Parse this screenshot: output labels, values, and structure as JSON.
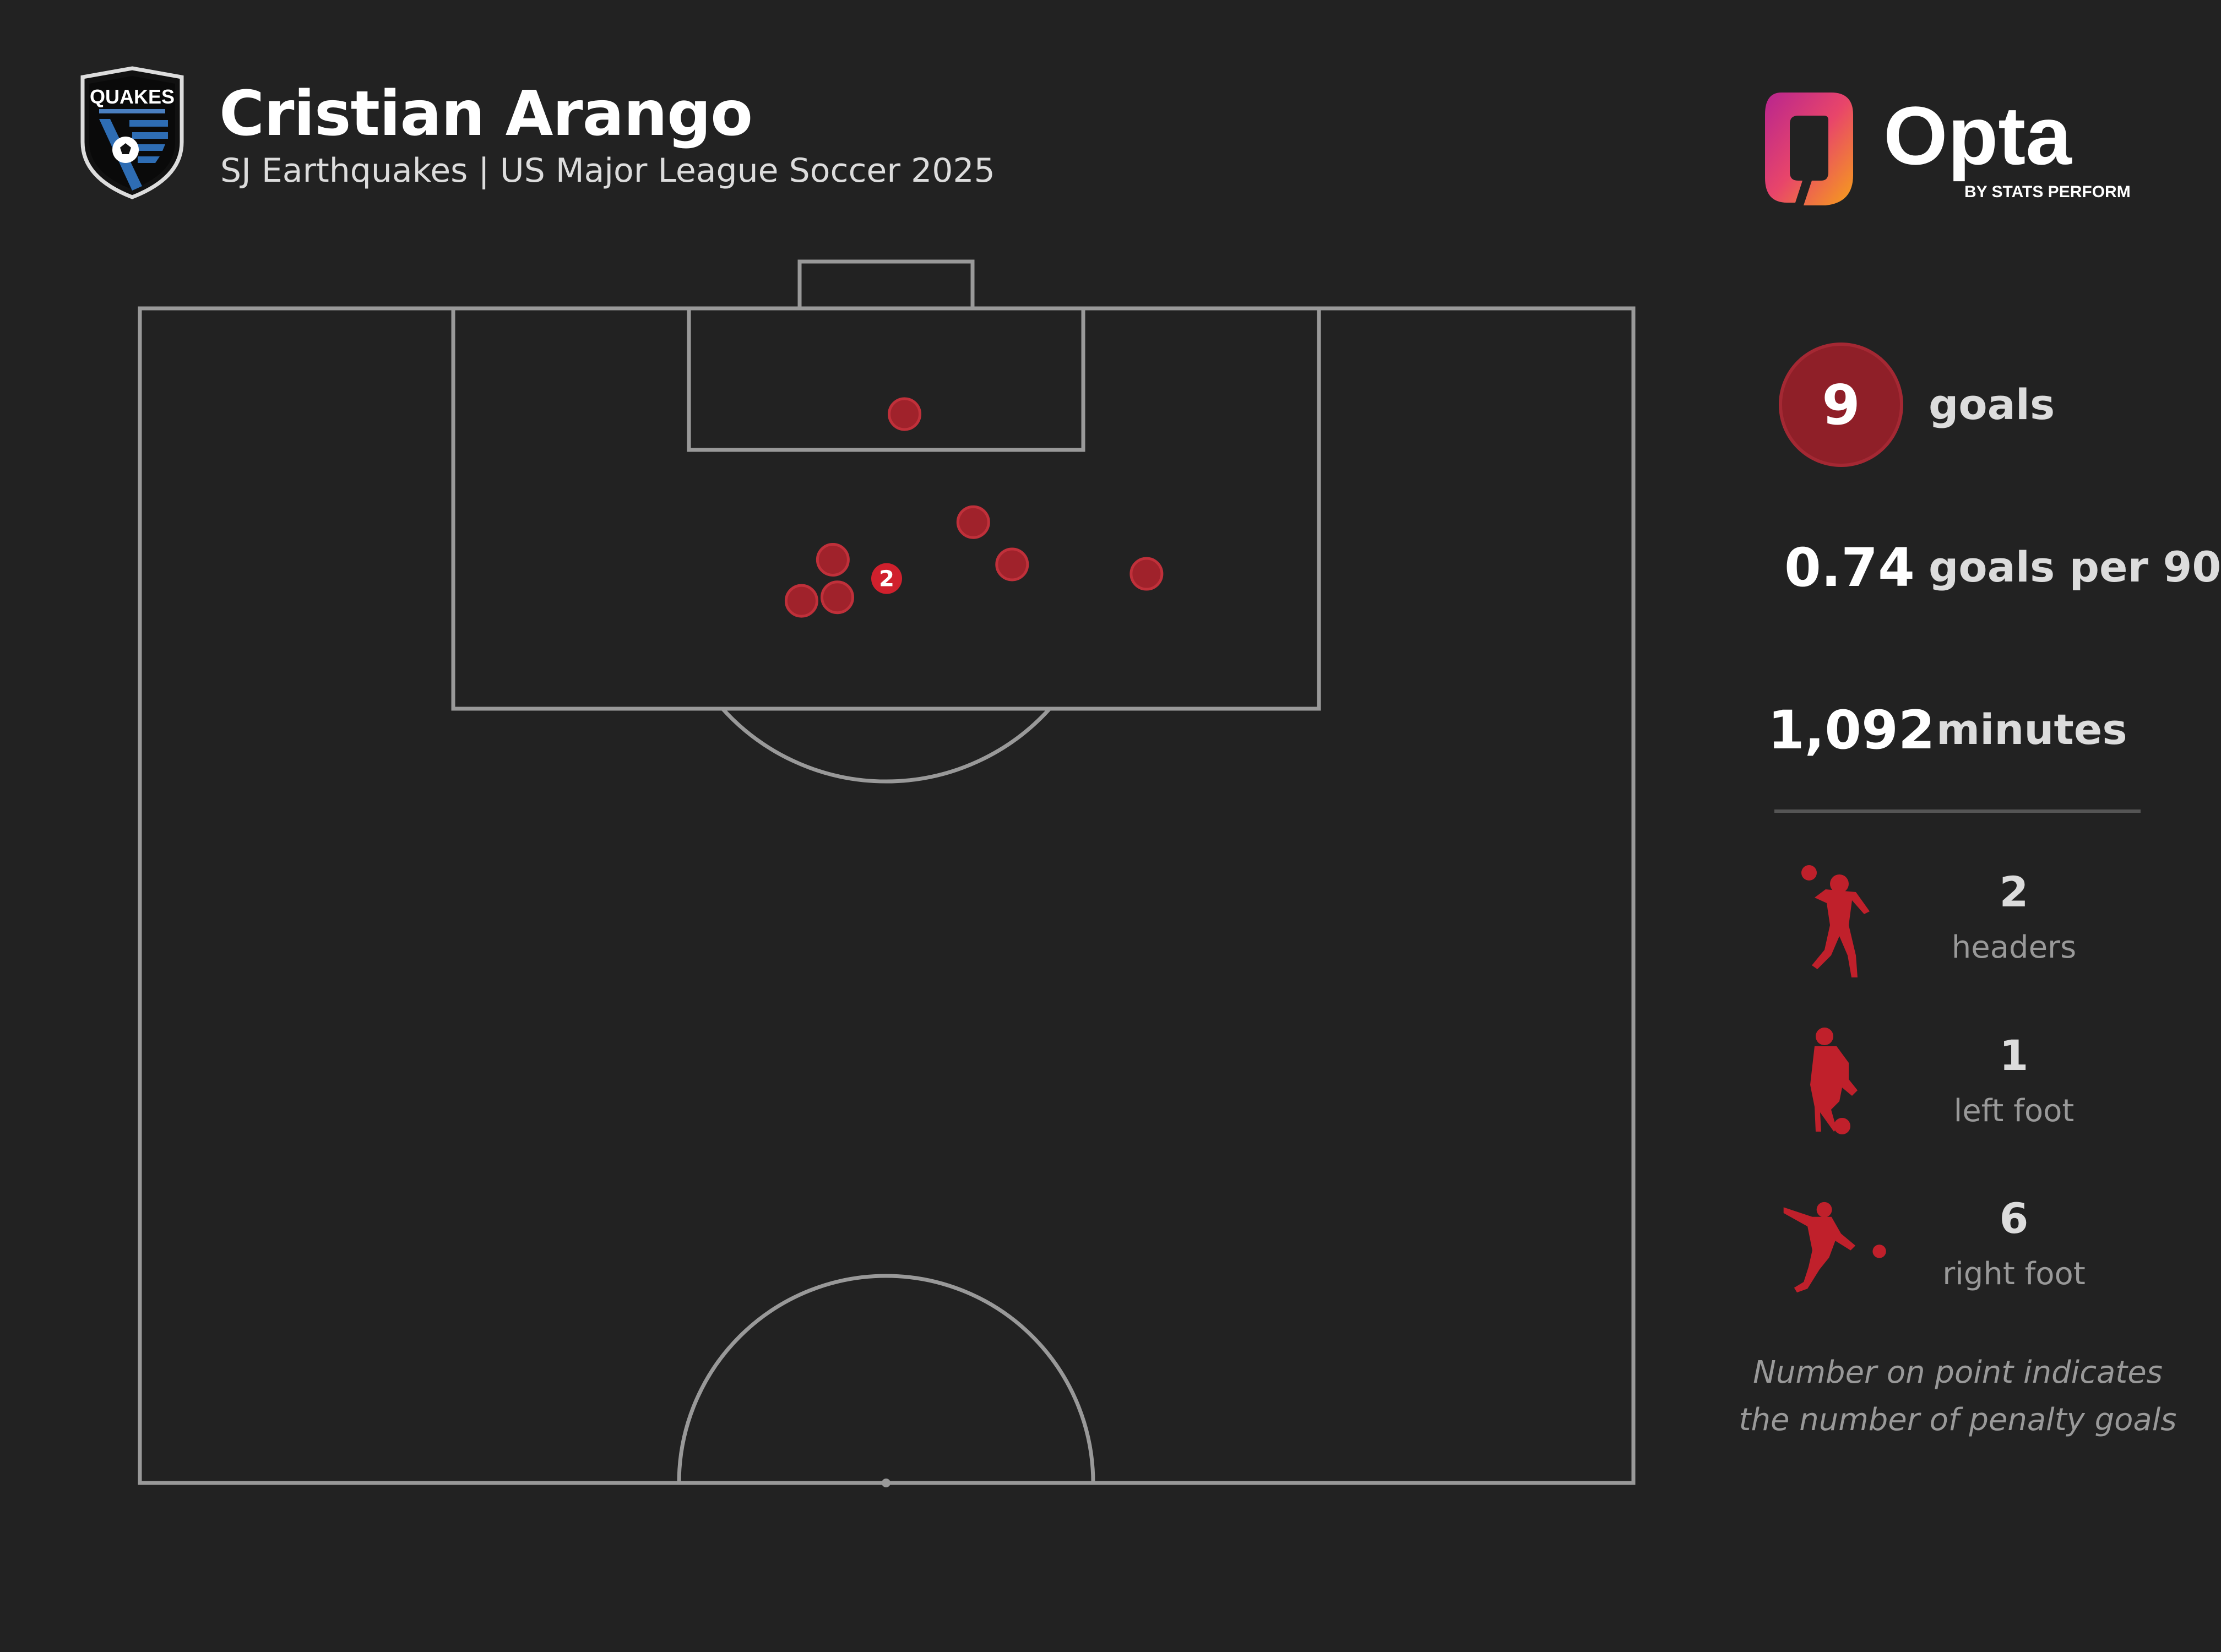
{
  "header": {
    "player_name": "Cristian Arango",
    "subtitle": "SJ Earthquakes | US Major League Soccer 2025",
    "club_logo_text": "QUAKES",
    "brand_logo_text": "Opta",
    "brand_logo_subtext": "BY STATS PERFORM"
  },
  "stats": {
    "goals_value": "9",
    "goals_label": "goals",
    "per90_value": "0.74",
    "per90_label": "goals per 90",
    "minutes_value": "1,092",
    "minutes_label": "minutes"
  },
  "by_type": [
    {
      "count": "2",
      "label": "headers",
      "icon": "header-icon"
    },
    {
      "count": "1",
      "label": "left foot",
      "icon": "left-foot-icon"
    },
    {
      "count": "6",
      "label": "right foot",
      "icon": "right-foot-icon"
    }
  ],
  "footnote": {
    "line1": "Number on point indicates",
    "line2": "the number of penalty goals"
  },
  "colors": {
    "background": "#222222",
    "pitch_lines": "#999999",
    "goal_marker": "#a0222b",
    "goal_marker_stroke": "#c0303a",
    "penalty_marker": "#d0202d"
  },
  "chart_data": {
    "type": "scatter",
    "description_units": "x: 0-100 across pitch width (left to right), y: 0-100 along pitch length from attacking goal line",
    "series": [
      {
        "points": [
          {
            "x": 51.2,
            "y": 9.0
          },
          {
            "x": 55.8,
            "y": 18.2
          },
          {
            "x": 46.4,
            "y": 21.4
          },
          {
            "x": 58.4,
            "y": 21.8
          },
          {
            "x": 67.4,
            "y": 22.6
          },
          {
            "x": 46.7,
            "y": 24.6
          },
          {
            "x": 44.3,
            "y": 24.9
          }
        ]
      }
    ],
    "penalties": [
      {
        "x": 50.0,
        "y": 23.0,
        "label": "2"
      }
    ]
  }
}
